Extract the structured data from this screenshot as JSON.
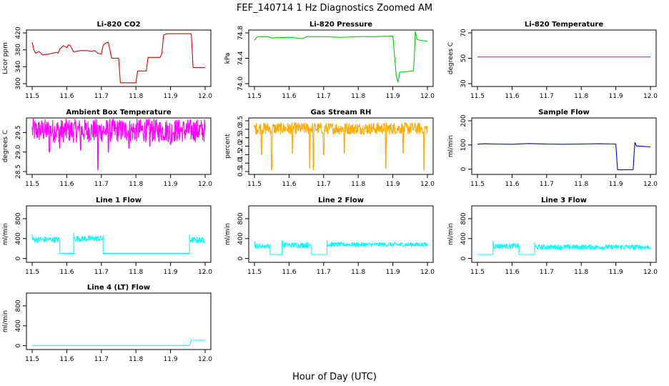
{
  "title": "FEF_140714  1 Hz Diagnostics Zoomed AM",
  "xlabel": "Hour of Day (UTC)",
  "chart_data": [
    {
      "type": "line",
      "title": "Li-820 CO2",
      "ylabel": "Licor ppm",
      "xlim": [
        11.5,
        12.0
      ],
      "ylim": [
        300,
        420
      ],
      "yticks": [
        "300",
        "340",
        "380",
        "420"
      ],
      "xticks": [
        "11.5",
        "11.6",
        "11.7",
        "11.8",
        "11.9",
        "12.0"
      ],
      "color": "#dd0000",
      "series": [
        {
          "x": [
            11.5,
            11.505,
            11.51,
            11.52,
            11.53,
            11.55,
            11.57,
            11.575,
            11.58,
            11.59,
            11.6,
            11.605,
            11.61,
            11.62,
            11.64,
            11.66,
            11.67,
            11.68,
            11.69,
            11.7,
            11.705,
            11.71,
            11.72,
            11.73,
            11.75,
            11.755,
            11.8,
            11.805,
            11.82,
            11.83,
            11.835,
            11.87,
            11.875,
            11.88,
            11.89,
            11.92,
            11.95,
            11.96,
            11.965,
            11.99,
            12.0
          ],
          "y": [
            398,
            380,
            372,
            376,
            368,
            370,
            374,
            372,
            382,
            390,
            385,
            392,
            390,
            375,
            378,
            378,
            376,
            378,
            372,
            370,
            390,
            395,
            398,
            360,
            360,
            302,
            302,
            330,
            330,
            330,
            362,
            362,
            372,
            415,
            418,
            418,
            418,
            418,
            338,
            338,
            338
          ]
        }
      ]
    },
    {
      "type": "line",
      "title": "Li-820 Pressure",
      "ylabel": "kPa",
      "xlim": [
        11.5,
        12.0
      ],
      "ylim": [
        74.0,
        74.8
      ],
      "yticks": [
        "74.0",
        "74.4",
        "74.8"
      ],
      "xticks": [
        "11.5",
        "11.6",
        "11.7",
        "11.8",
        "11.9",
        "12.0"
      ],
      "color": "#00cc00",
      "series": [
        {
          "x": [
            11.5,
            11.505,
            11.51,
            11.54,
            11.55,
            11.6,
            11.64,
            11.65,
            11.7,
            11.75,
            11.8,
            11.82,
            11.85,
            11.9,
            11.91,
            11.915,
            11.92,
            11.96,
            11.962,
            11.965,
            11.97,
            11.98,
            12.0
          ],
          "y": [
            74.68,
            74.72,
            74.74,
            74.74,
            74.72,
            74.73,
            74.71,
            74.74,
            74.74,
            74.73,
            74.74,
            74.74,
            74.74,
            74.75,
            74.12,
            74.02,
            74.18,
            74.2,
            74.4,
            74.82,
            74.7,
            74.68,
            74.67
          ]
        }
      ]
    },
    {
      "type": "line",
      "title": "Li-820 Temperature",
      "ylabel": "degrees C",
      "xlim": [
        11.5,
        12.0
      ],
      "ylim": [
        30,
        70
      ],
      "yticks": [
        "30",
        "50",
        "70"
      ],
      "xticks": [
        "11.5",
        "11.6",
        "11.7",
        "11.8",
        "11.9",
        "12.0"
      ],
      "color": "#ff00ff",
      "series": [
        {
          "x": [
            11.5,
            12.0
          ],
          "y": [
            51,
            51
          ]
        }
      ]
    },
    {
      "type": "line",
      "title": "Ambient Box Temperature",
      "ylabel": "degrees C",
      "xlim": [
        11.5,
        12.0
      ],
      "ylim": [
        28.5,
        29.8
      ],
      "yticks": [
        "28.5",
        "29.0",
        "29.5"
      ],
      "xticks": [
        "11.5",
        "11.6",
        "11.7",
        "11.8",
        "11.9",
        "12.0"
      ],
      "color": "#ff00ff",
      "noise": {
        "base": 29.55,
        "amp": 0.3,
        "dips": [
          [
            11.55,
            29.0
          ],
          [
            11.58,
            29.1
          ],
          [
            11.64,
            29.05
          ],
          [
            11.69,
            28.55
          ],
          [
            11.72,
            29.0
          ],
          [
            11.78,
            29.1
          ],
          [
            11.84,
            29.15
          ],
          [
            11.9,
            29.2
          ]
        ]
      }
    },
    {
      "type": "line",
      "title": "Gas Stream RH",
      "ylabel": "percent",
      "xlim": [
        11.5,
        12.0
      ],
      "ylim": [
        0.5,
        3.5
      ],
      "yticks": [
        "0.5",
        "1.0",
        "1.5",
        "2.0",
        "2.5",
        "3.0",
        "3.5"
      ],
      "xticks": [
        "11.5",
        "11.6",
        "11.7",
        "11.8",
        "11.9",
        "12.0"
      ],
      "color": "#ffaa00",
      "noise": {
        "base": 3.05,
        "amp": 0.35,
        "dips": [
          [
            11.52,
            1.5
          ],
          [
            11.55,
            0.6
          ],
          [
            11.61,
            1.6
          ],
          [
            11.66,
            0.7
          ],
          [
            11.67,
            0.6
          ],
          [
            11.7,
            1.5
          ],
          [
            11.76,
            1.6
          ],
          [
            11.88,
            0.7
          ],
          [
            11.93,
            1.6
          ],
          [
            11.99,
            0.6
          ]
        ]
      }
    },
    {
      "type": "line",
      "title": "Sample Flow",
      "ylabel": "ml/min",
      "xlim": [
        11.5,
        12.0
      ],
      "ylim": [
        -10,
        200
      ],
      "yticks": [
        "0",
        "100",
        "200"
      ],
      "xticks": [
        "11.5",
        "11.6",
        "11.7",
        "11.8",
        "11.9",
        "12.0"
      ],
      "color": "#0000dd",
      "series": [
        {
          "x": [
            11.5,
            11.52,
            11.55,
            11.6,
            11.65,
            11.7,
            11.75,
            11.8,
            11.85,
            11.9,
            11.905,
            11.91,
            11.95,
            11.955,
            11.96,
            11.98,
            12.0
          ],
          "y": [
            103,
            105,
            104,
            103,
            106,
            104,
            103,
            104,
            105,
            104,
            -2,
            -3,
            -2,
            110,
            96,
            94,
            92
          ]
        }
      ]
    },
    {
      "type": "line",
      "title": "Line 1 Flow",
      "ylabel": "ml/min",
      "xlim": [
        11.5,
        12.0
      ],
      "ylim": [
        -20,
        1000
      ],
      "yticks": [
        "0",
        "400",
        "800"
      ],
      "xticks": [
        "11.5",
        "11.6",
        "11.7",
        "11.8",
        "11.9",
        "12.0"
      ],
      "color": "#00ffff",
      "segments": [
        [
          11.5,
          11.58,
          380,
          120
        ],
        [
          11.58,
          11.62,
          100,
          0
        ],
        [
          11.62,
          11.705,
          400,
          120
        ],
        [
          11.705,
          11.955,
          100,
          0
        ],
        [
          11.955,
          12.0,
          370,
          120
        ]
      ]
    },
    {
      "type": "line",
      "title": "Line 2 Flow",
      "ylabel": "ml/min",
      "xlim": [
        11.5,
        12.0
      ],
      "ylim": [
        -20,
        1000
      ],
      "yticks": [
        "0",
        "400",
        "800"
      ],
      "xticks": [
        "11.5",
        "11.6",
        "11.7",
        "11.8",
        "11.9",
        "12.0"
      ],
      "color": "#00ffff",
      "segments": [
        [
          11.5,
          11.545,
          250,
          100
        ],
        [
          11.545,
          11.58,
          80,
          0
        ],
        [
          11.58,
          11.665,
          270,
          110
        ],
        [
          11.665,
          11.71,
          80,
          0
        ],
        [
          11.71,
          12.0,
          280,
          90
        ]
      ]
    },
    {
      "type": "line",
      "title": "Line 3 Flow",
      "ylabel": "ml/min",
      "xlim": [
        11.5,
        12.0
      ],
      "ylim": [
        -20,
        1000
      ],
      "yticks": [
        "0",
        "400",
        "800"
      ],
      "xticks": [
        "11.5",
        "11.6",
        "11.7",
        "11.8",
        "11.9",
        "12.0"
      ],
      "color": "#00ffff",
      "segments": [
        [
          11.5,
          11.545,
          80,
          0
        ],
        [
          11.545,
          11.62,
          250,
          110
        ],
        [
          11.62,
          11.665,
          80,
          0
        ],
        [
          11.665,
          12.0,
          230,
          100
        ]
      ]
    },
    {
      "type": "line",
      "title": "Line 4 (LT) Flow",
      "ylabel": "ml/min",
      "xlim": [
        11.5,
        12.0
      ],
      "ylim": [
        -20,
        1000
      ],
      "yticks": [
        "0",
        "400",
        "800"
      ],
      "xticks": [
        "11.5",
        "11.6",
        "11.7",
        "11.8",
        "11.9",
        "12.0"
      ],
      "color": "#00ffff",
      "series": [
        {
          "x": [
            11.5,
            11.955,
            11.96,
            11.965,
            12.0
          ],
          "y": [
            5,
            5,
            120,
            110,
            110
          ]
        }
      ]
    }
  ]
}
